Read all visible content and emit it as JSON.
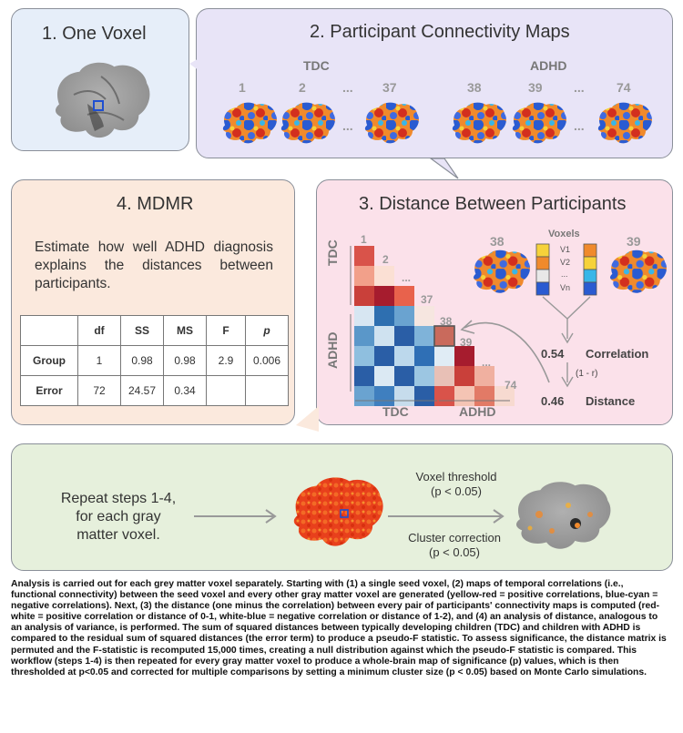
{
  "step1": {
    "title": "1. One Voxel"
  },
  "step2": {
    "title": "2. Participant Connectivity Maps",
    "groups": [
      "TDC",
      "ADHD"
    ],
    "numbers": [
      "1",
      "2",
      "...",
      "37",
      "38",
      "39",
      "...",
      "74"
    ]
  },
  "step3": {
    "title": "3. Distance Between Participants",
    "row_groups": [
      "TDC",
      "ADHD"
    ],
    "col_groups": [
      "TDC",
      "ADHD"
    ],
    "diag_labels": [
      "1",
      "2",
      "...",
      "37",
      "38",
      "39",
      "...",
      "74"
    ],
    "participants": [
      "38",
      "39"
    ],
    "voxels_label": "Voxels",
    "voxel_items": [
      "V1",
      "V2",
      "...",
      "Vn"
    ],
    "correlation_value": "0.54",
    "correlation_label": "Correlation",
    "transform": "(1 - r)",
    "distance_value": "0.46",
    "distance_label": "Distance"
  },
  "step4": {
    "title": "4. MDMR",
    "description": "Estimate how well ADHD diagnosis explains the distances between participants.",
    "table": {
      "headers": [
        "",
        "df",
        "SS",
        "MS",
        "F",
        "p"
      ],
      "rows": [
        [
          "Group",
          "1",
          "0.98",
          "0.98",
          "2.9",
          "0.006"
        ],
        [
          "Error",
          "72",
          "24.57",
          "0.34",
          "",
          ""
        ]
      ]
    }
  },
  "step5": {
    "text_lines": [
      "Repeat steps 1-4,",
      "for each gray",
      "matter voxel."
    ],
    "threshold_line1": "Voxel threshold",
    "threshold_line2": "(p < 0.05)",
    "cluster_line1": "Cluster correction",
    "cluster_line2": "(p < 0.05)"
  },
  "caption": "Analysis is carried out for each grey matter voxel separately. Starting with (1) a single seed voxel, (2) maps of temporal correlations (i.e., functional connectivity) between the seed voxel and every other gray matter voxel are generated (yellow-red = positive correlations, blue-cyan = negative correlations). Next, (3) the distance (one minus the correlation) between every pair of participants' connectivity maps is computed (red-white = positive correlation or distance of 0-1, white-blue = negative correlation or distance of 1-2), and (4) an analysis of distance, analogous to an analysis of variance, is performed. The sum of squared distances between typically developing children (TDC) and children with ADHD is compared to the residual sum of squared distances (the error term) to produce a pseudo-F statistic. To assess significance, the distance matrix is permuted and the F-statistic is recomputed 15,000 times, creating a null distribution against which the pseudo-F statistic is compared. This workflow (steps 1-4) is then repeated for every gray matter voxel to produce a whole-brain map of significance (p) values, which is then thresholded at p<0.05 and corrected for multiple comparisons by setting a minimum cluster size (p < 0.05) based on Monte Carlo simulations."
}
